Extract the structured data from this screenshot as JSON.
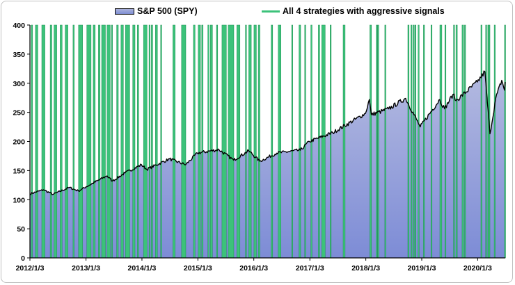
{
  "legend": {
    "spy": "S&P 500  (SPY)",
    "signals": "All 4 strategies with aggressive signals"
  },
  "colors": {
    "area_top": "#b4bae0",
    "area_bottom": "#7d8cd6",
    "price_line": "#000000",
    "signal_fill": "#3cc27a",
    "signal_edge": "#1f8f52"
  },
  "chart_data": {
    "type": "area",
    "title": "",
    "xlabel": "",
    "ylabel": "",
    "xlim": [
      "2012-01-03",
      "2020-07-01"
    ],
    "ylim": [
      0,
      400
    ],
    "grid": false,
    "legend_position": "top",
    "yticks": [
      0,
      50,
      100,
      150,
      200,
      250,
      300,
      350,
      400
    ],
    "xticks": [
      "2012/1/3",
      "2013/1/3",
      "2014/1/3",
      "2015/1/3",
      "2016/1/3",
      "2017/1/3",
      "2018/1/3",
      "2019/1/3",
      "2020/1/3"
    ],
    "series": [
      {
        "name": "S&P 500  (SPY)",
        "points": [
          [
            "2012-01-03",
            110
          ],
          [
            "2012-04-01",
            117
          ],
          [
            "2012-06-01",
            109
          ],
          [
            "2012-09-15",
            121
          ],
          [
            "2012-11-15",
            115
          ],
          [
            "2013-01-03",
            122
          ],
          [
            "2013-05-20",
            141
          ],
          [
            "2013-06-24",
            132
          ],
          [
            "2013-09-15",
            146
          ],
          [
            "2013-12-31",
            160
          ],
          [
            "2014-02-03",
            152
          ],
          [
            "2014-07-01",
            170
          ],
          [
            "2014-10-15",
            160
          ],
          [
            "2014-12-31",
            180
          ],
          [
            "2015-05-20",
            186
          ],
          [
            "2015-08-24",
            168
          ],
          [
            "2015-12-01",
            184
          ],
          [
            "2016-02-11",
            166
          ],
          [
            "2016-06-01",
            180
          ],
          [
            "2016-11-01",
            185
          ],
          [
            "2016-12-31",
            200
          ],
          [
            "2017-06-01",
            215
          ],
          [
            "2017-12-31",
            248
          ],
          [
            "2018-01-26",
            272
          ],
          [
            "2018-02-08",
            246
          ],
          [
            "2018-06-01",
            256
          ],
          [
            "2018-09-20",
            274
          ],
          [
            "2018-12-24",
            225
          ],
          [
            "2019-04-30",
            272
          ],
          [
            "2019-06-01",
            256
          ],
          [
            "2019-07-26",
            281
          ],
          [
            "2019-08-15",
            270
          ],
          [
            "2019-12-31",
            302
          ],
          [
            "2020-02-19",
            320
          ],
          [
            "2020-03-23",
            213
          ],
          [
            "2020-04-30",
            274
          ],
          [
            "2020-06-08",
            305
          ],
          [
            "2020-06-26",
            288
          ],
          [
            "2020-07-01",
            302
          ]
        ]
      }
    ],
    "signals": {
      "name": "All 4 strategies with aggressive signals",
      "periods": [
        [
          "2012-01-11",
          "2012-01-20"
        ],
        [
          "2012-02-08",
          "2012-02-24"
        ],
        [
          "2012-03-20",
          "2012-04-10"
        ],
        [
          "2012-05-14",
          "2012-05-25"
        ],
        [
          "2012-06-08",
          "2012-06-26"
        ],
        [
          "2012-07-18",
          "2012-07-31"
        ],
        [
          "2012-08-20",
          "2012-09-07"
        ],
        [
          "2012-10-10",
          "2012-10-18"
        ],
        [
          "2012-11-15",
          "2012-12-12"
        ],
        [
          "2013-01-08",
          "2013-02-05"
        ],
        [
          "2013-02-19",
          "2013-03-04"
        ],
        [
          "2013-03-25",
          "2013-04-05"
        ],
        [
          "2013-04-15",
          "2013-05-10"
        ],
        [
          "2013-05-20",
          "2013-06-10"
        ],
        [
          "2013-06-18",
          "2013-06-24"
        ],
        [
          "2013-07-22",
          "2013-08-02"
        ],
        [
          "2013-08-19",
          "2013-09-04"
        ],
        [
          "2013-09-17",
          "2013-10-15"
        ],
        [
          "2013-11-04",
          "2013-11-19"
        ],
        [
          "2013-12-04",
          "2013-12-13"
        ],
        [
          "2014-01-13",
          "2014-02-05"
        ],
        [
          "2014-02-18",
          "2014-02-24"
        ],
        [
          "2014-03-05",
          "2014-03-14"
        ],
        [
          "2014-04-01",
          "2014-04-14"
        ],
        [
          "2014-05-05",
          "2014-05-12"
        ],
        [
          "2014-07-24",
          "2014-08-08"
        ],
        [
          "2014-09-18",
          "2014-10-16"
        ],
        [
          "2014-12-05",
          "2014-12-16"
        ],
        [
          "2015-01-05",
          "2015-01-20"
        ],
        [
          "2015-01-28",
          "2015-02-06"
        ],
        [
          "2015-03-09",
          "2015-03-17"
        ],
        [
          "2015-03-25",
          "2015-04-08"
        ],
        [
          "2015-05-04",
          "2015-05-12"
        ],
        [
          "2015-06-09",
          "2015-07-08"
        ],
        [
          "2015-07-20",
          "2015-08-26"
        ],
        [
          "2015-09-14",
          "2015-10-05"
        ],
        [
          "2015-11-09",
          "2015-11-16"
        ],
        [
          "2015-12-01",
          "2015-12-18"
        ],
        [
          "2016-01-04",
          "2016-01-20"
        ],
        [
          "2016-02-01",
          "2016-02-12"
        ],
        [
          "2016-04-25",
          "2016-05-05"
        ],
        [
          "2016-06-10",
          "2016-06-28"
        ],
        [
          "2016-09-06",
          "2016-09-13"
        ],
        [
          "2016-10-24",
          "2016-11-04"
        ],
        [
          "2016-11-30",
          "2016-12-07"
        ],
        [
          "2017-01-09",
          "2017-01-17"
        ],
        [
          "2017-02-27",
          "2017-03-08"
        ],
        [
          "2017-03-21",
          "2017-04-13"
        ],
        [
          "2017-05-15",
          "2017-05-18"
        ],
        [
          "2017-08-08",
          "2017-08-21"
        ],
        [
          "2018-01-29",
          "2018-02-09"
        ],
        [
          "2018-03-12",
          "2018-03-14"
        ],
        [
          "2018-03-21",
          "2018-03-23"
        ],
        [
          "2018-05-07",
          "2018-05-09"
        ],
        [
          "2018-10-04",
          "2018-10-12"
        ],
        [
          "2018-10-24",
          "2018-10-26"
        ],
        [
          "2018-11-07",
          "2018-11-09"
        ],
        [
          "2018-11-19",
          "2018-11-21"
        ],
        [
          "2018-12-10",
          "2018-12-12"
        ],
        [
          "2019-01-14",
          "2019-01-16"
        ],
        [
          "2019-03-04",
          "2019-03-06"
        ],
        [
          "2019-05-01",
          "2019-05-14"
        ],
        [
          "2019-06-03",
          "2019-06-06"
        ],
        [
          "2019-07-29",
          "2019-08-05"
        ],
        [
          "2019-08-14",
          "2019-08-23"
        ],
        [
          "2019-09-23",
          "2019-10-03"
        ],
        [
          "2019-10-09",
          "2019-10-11"
        ],
        [
          "2020-01-24",
          "2020-01-31"
        ],
        [
          "2020-02-24",
          "2020-03-02"
        ],
        [
          "2020-03-09",
          "2020-03-11"
        ],
        [
          "2020-03-16",
          "2020-03-18"
        ],
        [
          "2020-04-20",
          "2020-04-22"
        ],
        [
          "2020-06-26",
          "2020-07-01"
        ]
      ]
    }
  }
}
